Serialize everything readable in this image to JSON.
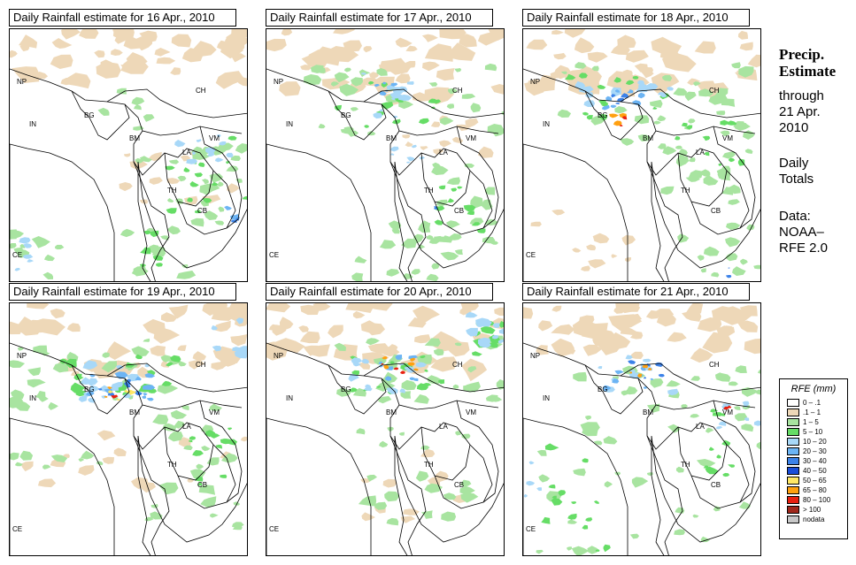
{
  "panels": [
    {
      "title": "Daily Rainfall estimate for  16 Apr., 2010"
    },
    {
      "title": "Daily Rainfall estimate for  17 Apr., 2010"
    },
    {
      "title": "Daily Rainfall estimate for  18 Apr., 2010"
    },
    {
      "title": "Daily Rainfall estimate for  19 Apr., 2010"
    },
    {
      "title": "Daily Rainfall estimate for  20 Apr., 2010"
    },
    {
      "title": "Daily Rainfall estimate for  21 Apr., 2010"
    }
  ],
  "country_labels": {
    "np": "NP",
    "ch": "CH",
    "in": "IN",
    "bg": "BG",
    "bm": "BM",
    "vm": "VM",
    "la": "LA",
    "th": "TH",
    "cb": "CB",
    "ce": "CE"
  },
  "side": {
    "title_line1": "Precip.",
    "title_line2": "Estimate",
    "through": "through",
    "date_line1": "21 Apr.",
    "date_line2": "2010",
    "daily_line1": "Daily",
    "daily_line2": "Totals",
    "data_line1": "Data:",
    "data_line2": "NOAA–",
    "data_line3": "RFE 2.0"
  },
  "legend": {
    "title": "RFE (mm)",
    "items": [
      {
        "label": "0 – .1",
        "color": "#ffffff"
      },
      {
        "label": ".1 – 1",
        "color": "#eed8b8"
      },
      {
        "label": "1 – 5",
        "color": "#a8e4a0"
      },
      {
        "label": "5 – 10",
        "color": "#66dd66"
      },
      {
        "label": "10 – 20",
        "color": "#a8d8f8"
      },
      {
        "label": "20 – 30",
        "color": "#6cb4f4"
      },
      {
        "label": "30 – 40",
        "color": "#3c82e8"
      },
      {
        "label": "40 – 50",
        "color": "#1a4ed8"
      },
      {
        "label": "50 – 65",
        "color": "#ffe866"
      },
      {
        "label": "65 – 80",
        "color": "#ffa010"
      },
      {
        "label": "80 – 100",
        "color": "#e82010"
      },
      {
        "label": "> 100",
        "color": "#a0281c"
      },
      {
        "label": "nodata",
        "color": "#c8c8c8"
      }
    ]
  }
}
